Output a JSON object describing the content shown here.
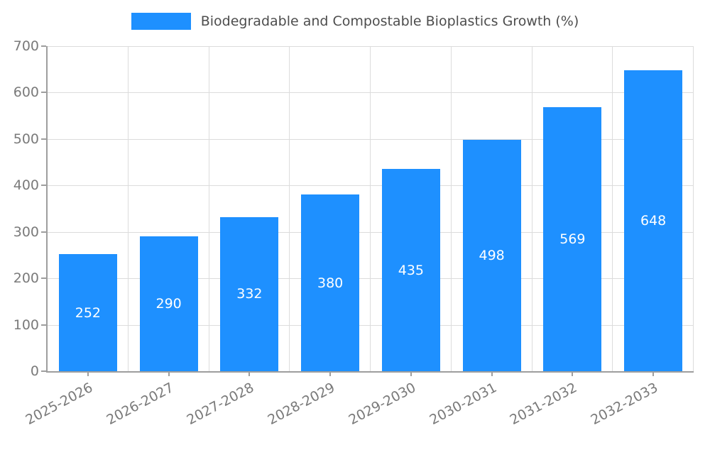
{
  "chart_data": {
    "type": "bar",
    "title": "Biodegradable and Compostable Bioplastics Growth (%)",
    "categories": [
      "2025-2026",
      "2026-2027",
      "2027-2028",
      "2028-2029",
      "2029-2030",
      "2030-2031",
      "2031-2032",
      "2032-2033"
    ],
    "values": [
      252,
      290,
      332,
      380,
      435,
      498,
      569,
      648
    ],
    "xlabel": "",
    "ylabel": "",
    "ylim": [
      0,
      700
    ],
    "ytick_step": 100,
    "grid": "on",
    "legend_position": "top",
    "bar_color": "#1E90FF",
    "bar_label_color": "#ffffff"
  }
}
